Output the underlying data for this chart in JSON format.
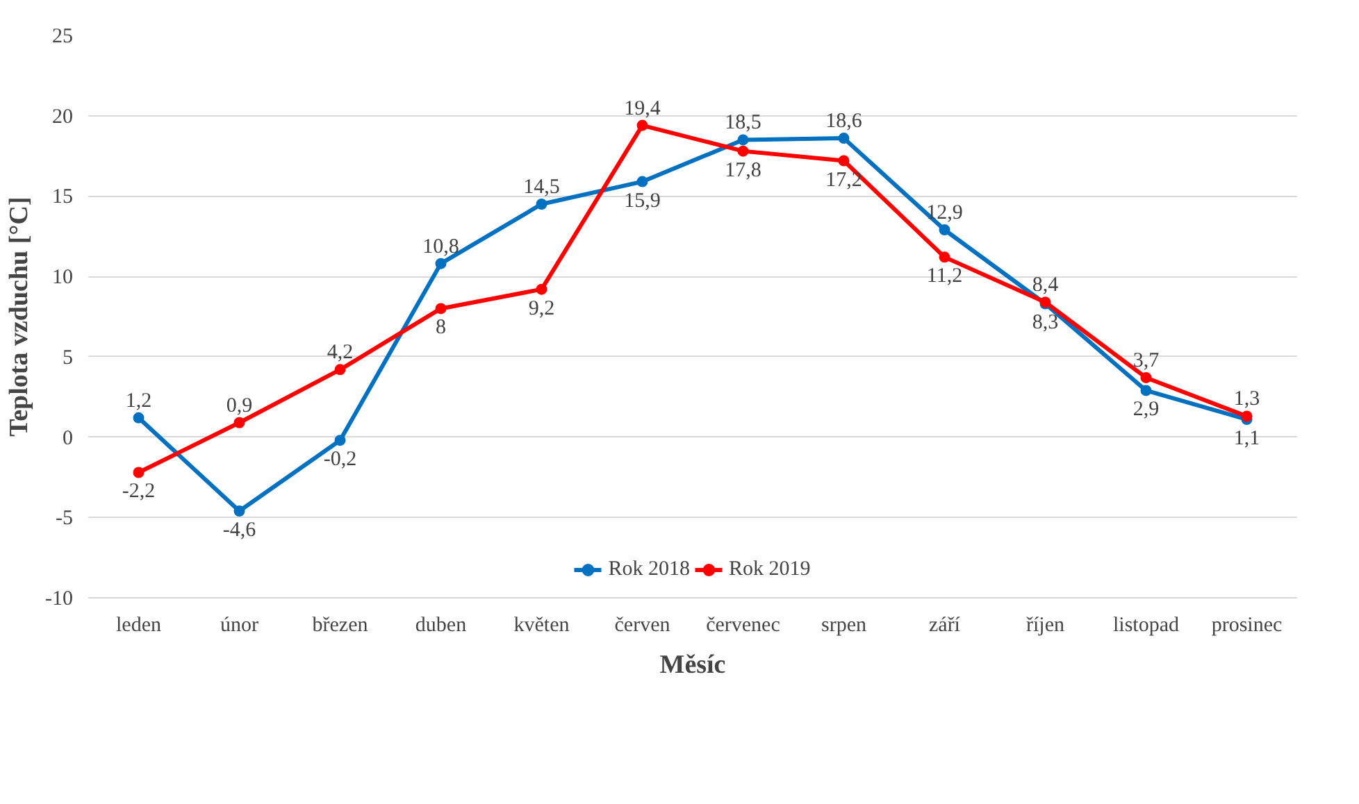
{
  "chart_data": {
    "type": "line",
    "xlabel": "Měsíc",
    "ylabel": "Teplota vzduchu [°C]",
    "categories": [
      "leden",
      "únor",
      "březen",
      "duben",
      "květen",
      "červen",
      "červenec",
      "srpen",
      "září",
      "říjen",
      "listopad",
      "prosinec"
    ],
    "series": [
      {
        "name": "Rok 2018",
        "color": "#0070c0",
        "values": [
          1.2,
          -4.6,
          -0.2,
          10.8,
          14.5,
          15.9,
          18.5,
          18.6,
          12.9,
          8.3,
          2.9,
          1.1
        ],
        "value_labels": [
          "1,2",
          "-4,6",
          "-0,2",
          "10,8",
          "14,5",
          "15,9",
          "18,5",
          "18,6",
          "12,9",
          "8,3",
          "2,9",
          "1,1"
        ]
      },
      {
        "name": "Rok 2019",
        "color": "#ff0000",
        "values": [
          -2.2,
          0.9,
          4.2,
          8,
          9.2,
          19.4,
          17.8,
          17.2,
          11.2,
          8.4,
          3.7,
          1.3
        ],
        "value_labels": [
          "-2,2",
          "0,9",
          "4,2",
          "8",
          "9,2",
          "19,4",
          "17,8",
          "17,2",
          "11,2",
          "8,4",
          "3,7",
          "1,3"
        ]
      }
    ],
    "ylim": [
      -10,
      25
    ],
    "yticks": [
      -10,
      -5,
      0,
      5,
      10,
      15,
      20,
      25
    ],
    "grid": "y",
    "legend": "bottom",
    "marker": "circle",
    "line_style": "solid"
  }
}
